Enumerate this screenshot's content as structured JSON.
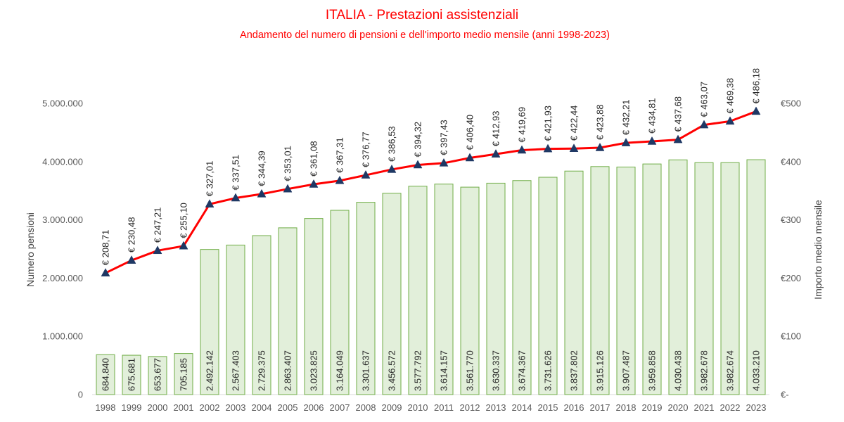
{
  "chart_data": {
    "type": "bar",
    "title": "ITALIA - Prestazioni assistenziali",
    "subtitle": "Andamento del numero di pensioni e dell'importo medio mensile (anni 1998-2023)",
    "categories": [
      "1998",
      "1999",
      "2000",
      "2001",
      "2002",
      "2003",
      "2004",
      "2005",
      "2006",
      "2007",
      "2008",
      "2009",
      "2010",
      "2011",
      "2012",
      "2013",
      "2014",
      "2015",
      "2016",
      "2017",
      "2018",
      "2019",
      "2020",
      "2021",
      "2022",
      "2023"
    ],
    "ylabel": "Numero pensioni",
    "y2label": "Importo medio mensile",
    "ylim": [
      0,
      5000000
    ],
    "y2lim": [
      0,
      500
    ],
    "yticks": [
      0,
      1000000,
      2000000,
      3000000,
      4000000,
      5000000
    ],
    "ytick_labels": [
      "0",
      "1.000.000",
      "2.000.000",
      "3.000.000",
      "4.000.000",
      "5.000.000"
    ],
    "y2ticks": [
      0,
      100,
      200,
      300,
      400,
      500
    ],
    "y2tick_labels": [
      "€-",
      "€100",
      "€200",
      "€300",
      "€400",
      "€500"
    ],
    "grid": false,
    "legend": false,
    "series": [
      {
        "type": "bar",
        "axis": "left",
        "values": [
          684840,
          675681,
          653677,
          705185,
          2492142,
          2567403,
          2729375,
          2863407,
          3023825,
          3164049,
          3301637,
          3456572,
          3577792,
          3614157,
          3561770,
          3630337,
          3674367,
          3731626,
          3837802,
          3915126,
          3907487,
          3959858,
          4030438,
          3982678,
          3982674,
          4033210
        ],
        "labels": [
          "684.840",
          "675.681",
          "653.677",
          "705.185",
          "2.492.142",
          "2.567.403",
          "2.729.375",
          "2.863.407",
          "3.023.825",
          "3.164.049",
          "3.301.637",
          "3.456.572",
          "3.577.792",
          "3.614.157",
          "3.561.770",
          "3.630.337",
          "3.674.367",
          "3.731.626",
          "3.837.802",
          "3.915.126",
          "3.907.487",
          "3.959.858",
          "4.030.438",
          "3.982.678",
          "3.982.674",
          "4.033.210"
        ],
        "color": "#e2efda",
        "edge_color": "#70ad47"
      },
      {
        "type": "line",
        "axis": "right",
        "values": [
          208.71,
          230.48,
          247.21,
          255.1,
          327.01,
          337.51,
          344.39,
          353.01,
          361.08,
          367.31,
          376.77,
          386.53,
          394.32,
          397.43,
          406.4,
          412.93,
          419.69,
          421.93,
          422.44,
          423.88,
          432.21,
          434.81,
          437.68,
          463.07,
          469.38,
          486.18
        ],
        "labels": [
          "€ 208,71",
          "€ 230,48",
          "€ 247,21",
          "€ 255,10",
          "€ 327,01",
          "€ 337,51",
          "€ 344,39",
          "€ 353,01",
          "€ 361,08",
          "€ 367,31",
          "€ 376,77",
          "€ 386,53",
          "€ 394,32",
          "€ 397,43",
          "€ 406,40",
          "€ 412,93",
          "€ 419,69",
          "€ 421,93",
          "€ 422,44",
          "€ 423,88",
          "€ 432,21",
          "€ 434,81",
          "€ 437,68",
          "€ 463,07",
          "€ 469,38",
          "€ 486,18"
        ],
        "color": "#ff0000",
        "marker": "triangle",
        "marker_color": "#1f3864"
      }
    ]
  }
}
